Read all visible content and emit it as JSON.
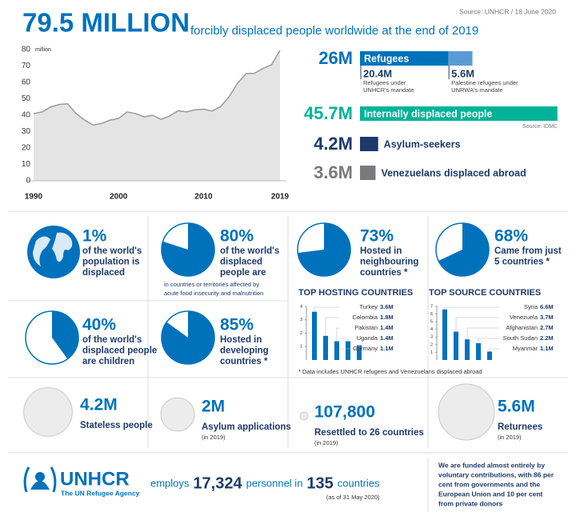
{
  "header": {
    "title": "79.5 MILLION",
    "subtitle": "forcibly displaced people worldwide at the end of 2019",
    "source": "Source: UNHCR / 18 June 2020"
  },
  "chart_data": [
    {
      "type": "line",
      "y_unit": "million",
      "x": [
        1990,
        1991,
        1992,
        1993,
        1994,
        1995,
        1996,
        1997,
        1998,
        1999,
        2000,
        2001,
        2002,
        2003,
        2004,
        2005,
        2006,
        2007,
        2008,
        2009,
        2010,
        2011,
        2012,
        2013,
        2014,
        2015,
        2016,
        2017,
        2018,
        2019
      ],
      "values": [
        41,
        42,
        45,
        46.5,
        47,
        41,
        37,
        34,
        35,
        37,
        38,
        42,
        41,
        39,
        40,
        37.5,
        39.5,
        42.7,
        42,
        43.3,
        43.7,
        42.5,
        45.2,
        51.2,
        59.5,
        65.3,
        65.6,
        68.5,
        70.8,
        79.5
      ],
      "xlim": [
        1990,
        2019
      ],
      "xticks": [
        1990,
        2000,
        2010,
        2019
      ],
      "ylim": [
        0,
        80
      ],
      "yticks": [
        0,
        10,
        20,
        30,
        40,
        50,
        60,
        70,
        80
      ],
      "color": "#9a9a9a",
      "fill": "#e4e4e4",
      "grid": false
    },
    {
      "type": "hbar",
      "categories": [
        "Refugees",
        "Internally displaced people",
        "Asylum-seekers",
        "Venezuelans displaced abroad"
      ],
      "values": [
        26,
        45.7,
        4.2,
        3.6
      ],
      "value_labels": [
        "26M",
        "45.7M",
        "4.2M",
        "3.6M"
      ],
      "colors": [
        "#0072bc",
        "#00b398",
        "#1d3a6b",
        "#7a7a7a"
      ],
      "breakdown": [
        {
          "value": 20.4,
          "value_label": "20.4M",
          "lines": [
            "Refugees under",
            "UNHCR's mandate"
          ],
          "color": "#0072bc"
        },
        {
          "value": 5.6,
          "value_label": "5.6M",
          "lines": [
            "Palestine refugees under",
            "UNRWA's mandate"
          ],
          "color": "#5b9bd5"
        }
      ],
      "note": "Source: IDMC"
    },
    {
      "type": "column",
      "title": "TOP HOSTING COUNTRIES",
      "categories": [
        "Turkey",
        "Colombia",
        "Pakistan",
        "Uganda",
        "Germany"
      ],
      "values": [
        3.6,
        1.8,
        1.4,
        1.4,
        1.1
      ],
      "value_labels": [
        "3.6M",
        "1.8M",
        "1.4M",
        "1.4M",
        "1.1M"
      ],
      "ylim": [
        0,
        4
      ],
      "yticks": [
        1,
        2,
        3,
        4
      ],
      "color": "#0072bc"
    },
    {
      "type": "column",
      "title": "TOP SOURCE COUNTRIES",
      "categories": [
        "Syria",
        "Venezuela",
        "Afghanistan",
        "South Sudan",
        "Myanmar"
      ],
      "values": [
        6.6,
        3.7,
        2.7,
        2.2,
        1.1
      ],
      "value_labels": [
        "6.6M",
        "3.7M",
        "2.7M",
        "2.2M",
        "1.1M"
      ],
      "ylim": [
        0,
        7
      ],
      "yticks": [
        1,
        2,
        3,
        4,
        5,
        6,
        7
      ],
      "color": "#0072bc"
    }
  ],
  "stats": [
    {
      "label": "1%",
      "lines": [
        "of the world's",
        "population is",
        "displaced"
      ]
    },
    {
      "value": 80,
      "label": "80%",
      "lines": [
        "of the world's",
        "displaced",
        "people are"
      ],
      "note": [
        "in countries or territories affected by",
        "acute food insecurity and malnutrition"
      ]
    },
    {
      "value": 73,
      "label": "73%",
      "lines": [
        "Hosted in",
        "neighbouring",
        "countries *"
      ]
    },
    {
      "value": 68,
      "label": "68%",
      "lines": [
        "Came from just",
        "5 countries *"
      ]
    },
    {
      "value": 40,
      "label": "40%",
      "lines": [
        "of the world's",
        "displaced people",
        "are children"
      ]
    },
    {
      "value": 85,
      "label": "85%",
      "lines": [
        "Hosted in",
        "developing",
        "countries *"
      ]
    }
  ],
  "footnote": "* Data includes UNHCR refugees and Venezuelans displaced abroad",
  "bubbles": [
    {
      "value": 4200000,
      "label": "4.2M",
      "text": "Stateless people"
    },
    {
      "value": 2000000,
      "label": "2M",
      "text": "Asylum applications",
      "note": "(in 2019)"
    },
    {
      "value": 107800,
      "label": "107,800",
      "text": "Resettled to 26 countries",
      "note": "(in 2019)"
    },
    {
      "value": 5600000,
      "label": "5.6M",
      "text": "Returnees",
      "note": "(in 2019)"
    }
  ],
  "footer": {
    "logo": "UNHCR",
    "tagline": "The UN Refugee Agency",
    "sentence": [
      "employs",
      "17,324",
      "personnel in",
      "135",
      "countries"
    ],
    "as_of": "(as of 31 May 2020)",
    "funding": [
      "We are funded almost entirely by",
      "voluntary contributions, with 86 per",
      "cent from governments and the",
      "European Union and 10 per cent",
      "from private donors"
    ]
  }
}
